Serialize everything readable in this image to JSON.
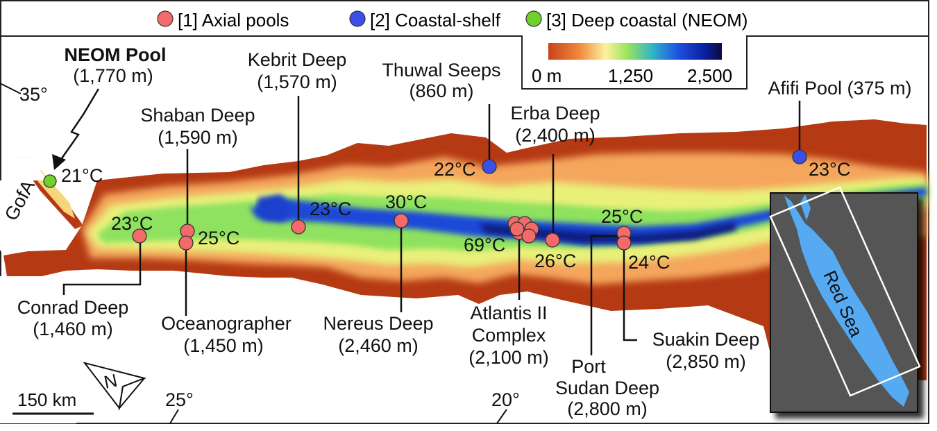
{
  "legend": {
    "items": [
      {
        "label": "[1] Axial pools",
        "color": "#f26a6a"
      },
      {
        "label": "[2] Coastal-shelf",
        "color": "#3a4fe8"
      },
      {
        "label": "[3] Deep coastal (NEOM)",
        "color": "#6fd12a"
      }
    ],
    "depth_scale": {
      "min_label": "0 m",
      "mid_label": "1,250",
      "max_label": "2,500"
    }
  },
  "colors": {
    "axial": "#f26a6a",
    "coastal": "#3a4fe8",
    "neom": "#6fd12a",
    "land": "#b53a14",
    "inset_bg": "#555555",
    "inset_sea": "#55aaf2"
  },
  "sites": {
    "neom": {
      "name": "NEOM Pool",
      "depth": "(1,770 m)",
      "temp": "21°C"
    },
    "kebrit": {
      "name": "Kebrit Deep",
      "depth": "(1,570 m)",
      "temp": "23°C"
    },
    "thuwal": {
      "name": "Thuwal Seeps",
      "depth": "(860 m)",
      "temp": "22°C"
    },
    "afifi": {
      "name": "Afifi Pool (375 m)",
      "temp": "23°C"
    },
    "shaban": {
      "name": "Shaban Deep",
      "depth": "(1,590 m)",
      "temp": "25°C"
    },
    "erba": {
      "name": "Erba Deep",
      "depth": "(2,400 m)",
      "temp": "26°C"
    },
    "conrad": {
      "name": "Conrad Deep",
      "depth": "(1,460 m)",
      "temp": "23°C"
    },
    "oceanographer": {
      "name": "Oceanographer",
      "depth": "(1,450 m)"
    },
    "nereus": {
      "name": "Nereus Deep",
      "depth": "(2,460 m)",
      "temp": "30°C"
    },
    "atlantis": {
      "name1": "Atlantis II",
      "name2": "Complex",
      "depth": "(2,100 m)",
      "temp": "69°C"
    },
    "suakin": {
      "name": "Suakin Deep",
      "depth": "(2,850 m)",
      "temp": "24°C"
    },
    "portsudan": {
      "name1": "Port",
      "name2": "Sudan Deep",
      "depth": "(2,800 m)",
      "temp": "25°C"
    }
  },
  "map_labels": {
    "gulf": "GofA",
    "lon_35": "35°",
    "lon_25": "25°",
    "lon_20": "20°",
    "scale_bar": "150 km",
    "north": "N",
    "inset_label": "Red Sea"
  }
}
